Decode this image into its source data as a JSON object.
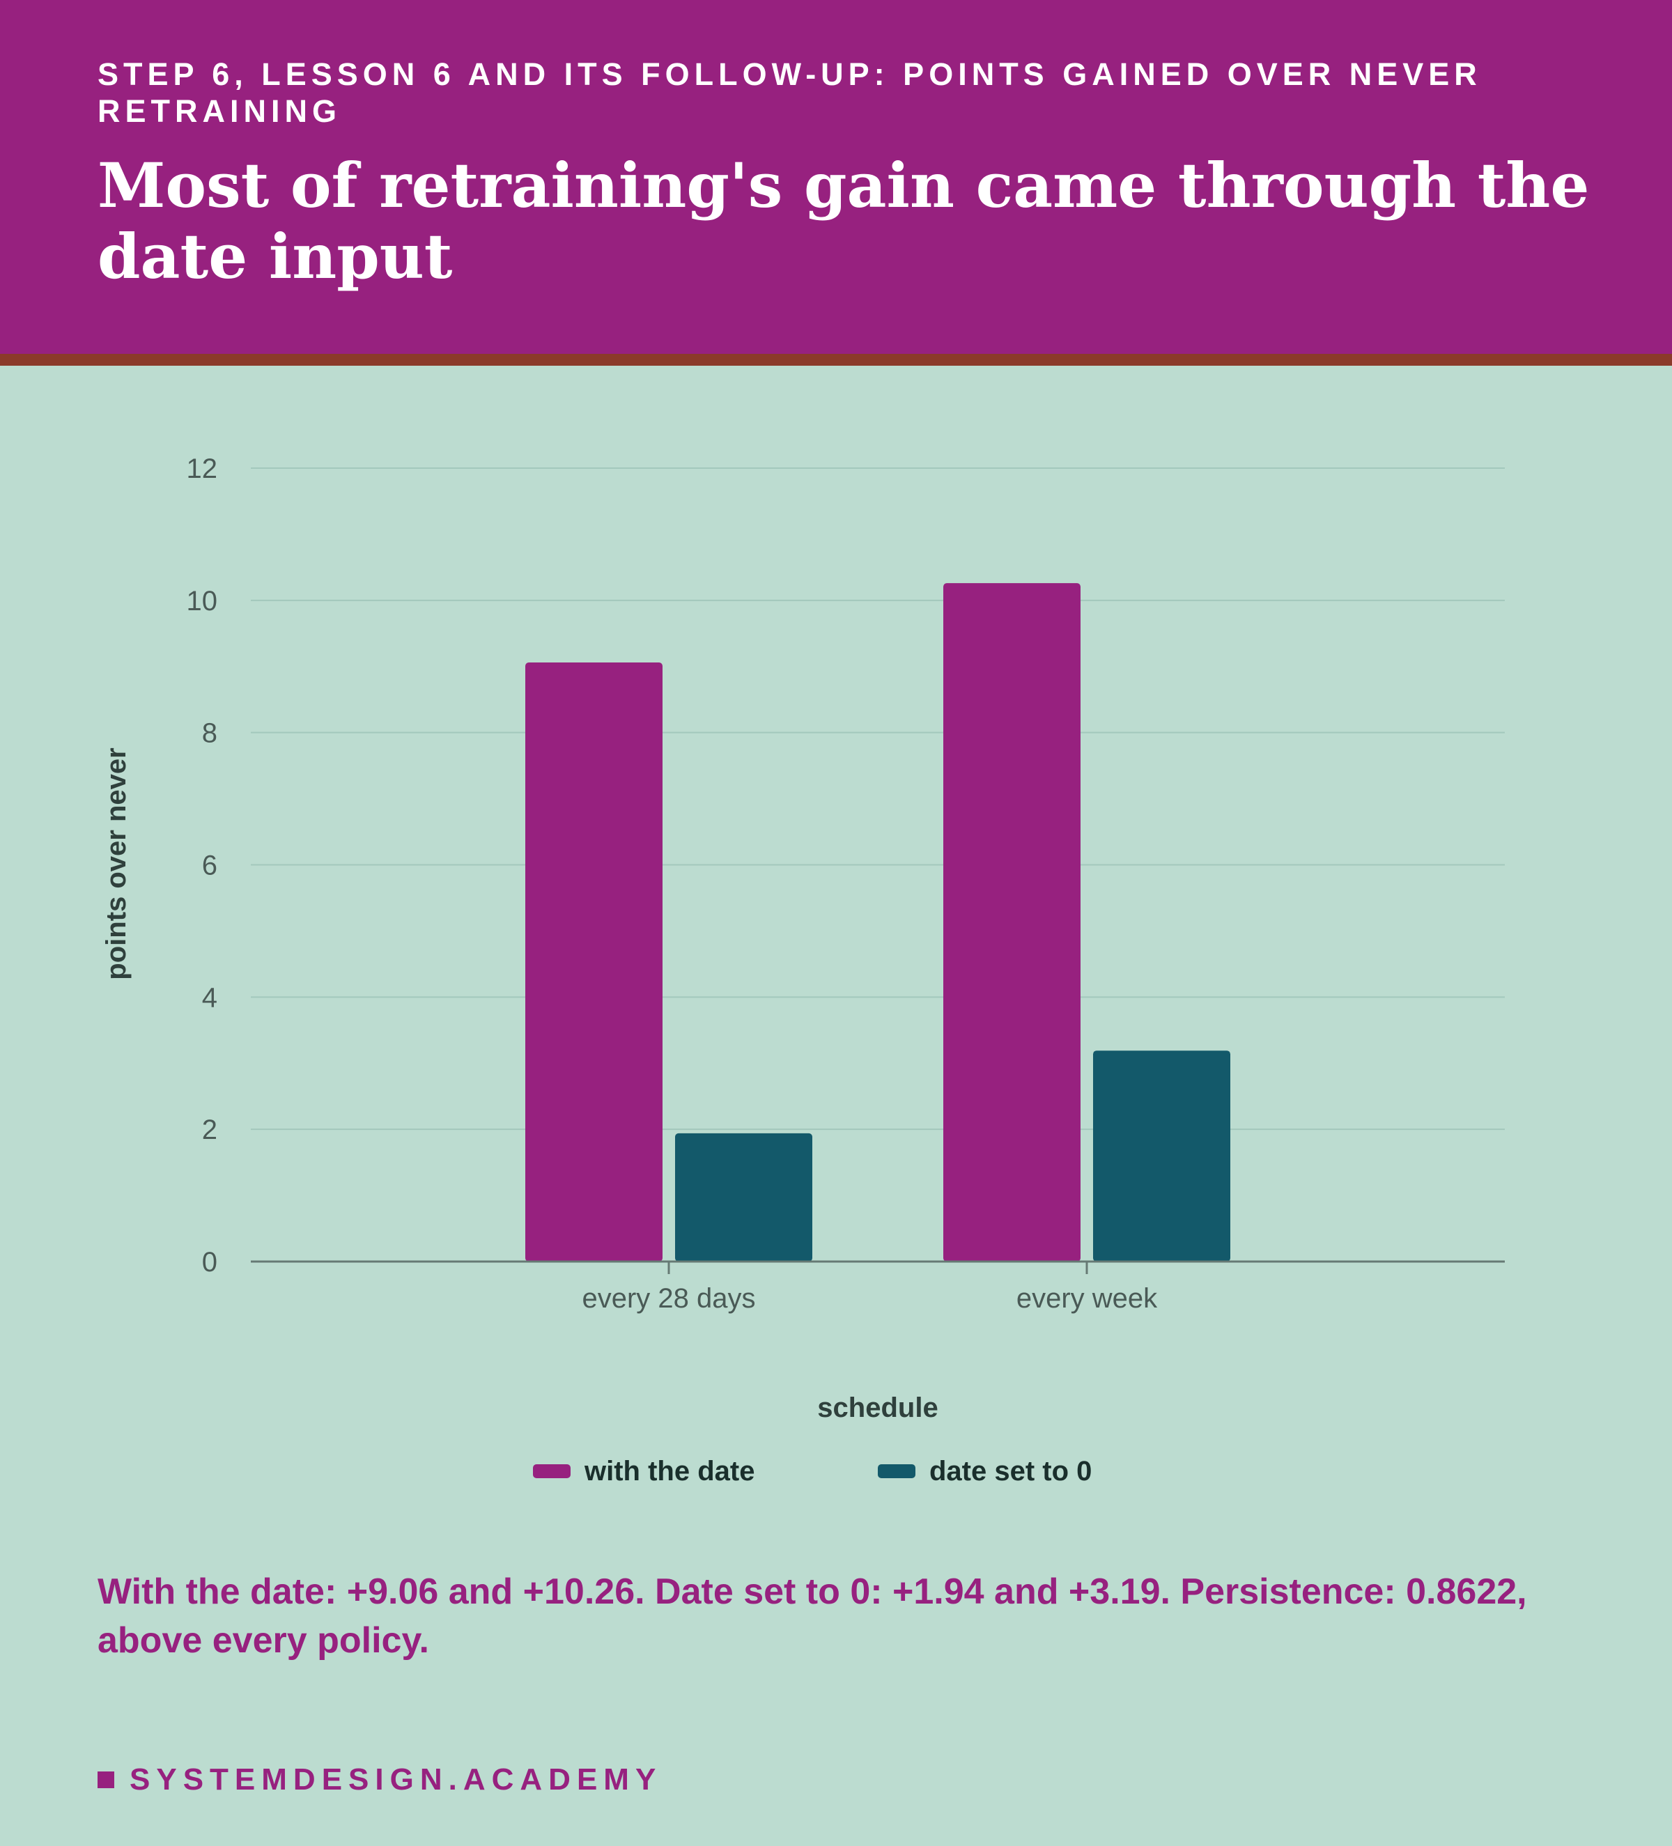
{
  "header": {
    "eyebrow": "STEP 6, LESSON 6 AND ITS FOLLOW-UP: POINTS GAINED OVER NEVER RETRAINING",
    "headline": "Most of retraining's gain came through the date input"
  },
  "chart_data": {
    "type": "bar",
    "categories": [
      "every 28 days",
      "every week"
    ],
    "series": [
      {
        "name": "with the date",
        "values": [
          9.06,
          10.26
        ],
        "color": "#97217f"
      },
      {
        "name": "date set to 0",
        "values": [
          1.94,
          3.19
        ],
        "color": "#13596a"
      }
    ],
    "xlabel": "schedule",
    "ylabel": "points over never",
    "ylim": [
      0,
      12
    ],
    "yticks": [
      0,
      2,
      4,
      6,
      8,
      10,
      12
    ],
    "grid": true,
    "legend": "bottom-center"
  },
  "legend": {
    "items": [
      {
        "label": "with the date",
        "color": "#97217f"
      },
      {
        "label": "date set to 0",
        "color": "#13596a"
      }
    ]
  },
  "caption": "With the date: +9.06 and +10.26. Date set to 0: +1.94 and +3.19. Persistence: 0.8622, above every policy.",
  "brand": "SYSTEMDESIGN.ACADEMY"
}
